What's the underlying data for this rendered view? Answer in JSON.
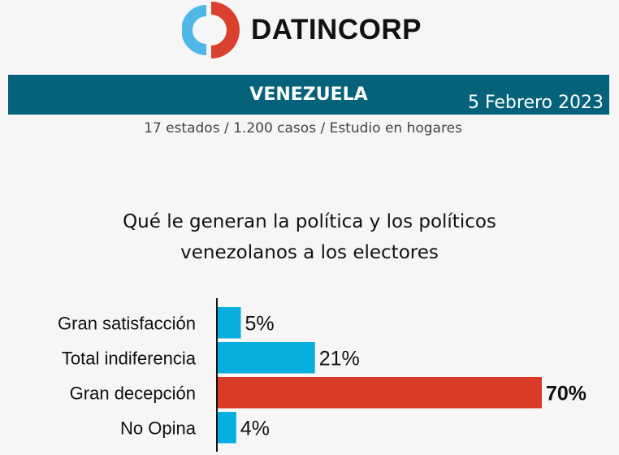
{
  "brand": {
    "name": "DATINCORP",
    "colors": {
      "blue": "#4fb8e8",
      "red": "#d9402e"
    }
  },
  "banner": {
    "title": "VENEZUELA",
    "date": "5 Febrero 2023",
    "color": "#05627a"
  },
  "subtitle": "17 estados / 1.200 casos / Estudio en hogares",
  "chart_data": {
    "type": "bar",
    "orientation": "horizontal",
    "title_line1": "Qué le generan la política y los políticos",
    "title_line2": "venezolanos a los electores",
    "categories": [
      "Gran satisfacción",
      "Total indiferencia",
      "Gran decepción",
      "No Opina"
    ],
    "values": [
      5,
      21,
      70,
      4
    ],
    "value_labels": [
      "5%",
      "21%",
      "70%",
      "4%"
    ],
    "highlight_index": 2,
    "colors": {
      "default": "#06aede",
      "highlight": "#d93b29"
    },
    "xlim": [
      0,
      70
    ],
    "grid": false,
    "legend": "none"
  }
}
